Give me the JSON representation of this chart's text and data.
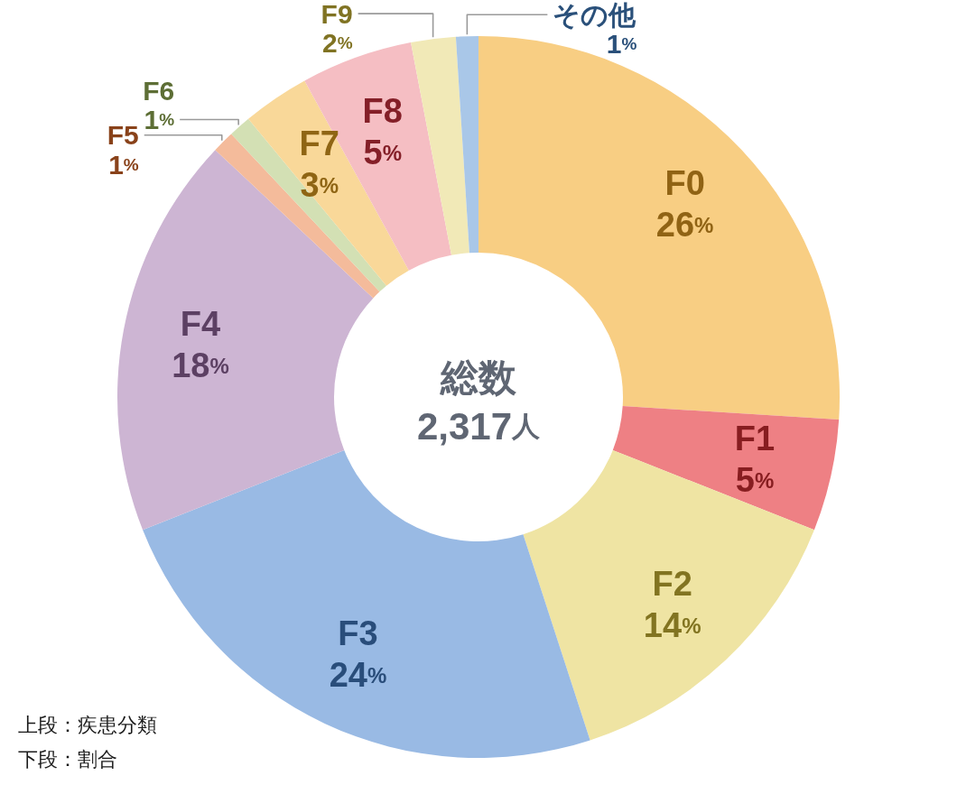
{
  "chart_data": {
    "type": "donut",
    "categories": [
      "F0",
      "F1",
      "F2",
      "F3",
      "F4",
      "F5",
      "F6",
      "F7",
      "F8",
      "F9",
      "その他"
    ],
    "values": [
      26,
      5,
      14,
      24,
      18,
      1,
      1,
      3,
      5,
      2,
      1
    ],
    "colors": [
      "#f8ce83",
      "#ee8084",
      "#efe4a3",
      "#99bae4",
      "#cdb5d3",
      "#f4bb9b",
      "#d3e0b4",
      "#f9d899",
      "#f5bec3",
      "#f1e9b7",
      "#a9c7e8"
    ],
    "value_labels": [
      "26%",
      "5%",
      "14%",
      "24%",
      "18%",
      "1%",
      "1%",
      "3%",
      "5%",
      "2%",
      "1%"
    ],
    "annotations": [
      "総数",
      "2,317人",
      "上段：疾患分類",
      "下段：割合"
    ]
  }
}
